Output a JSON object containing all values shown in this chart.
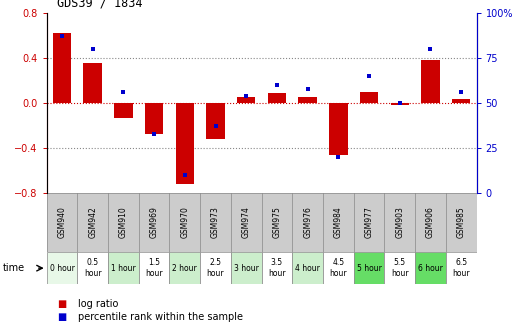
{
  "title": "GDS39 / 1834",
  "samples": [
    "GSM940",
    "GSM942",
    "GSM910",
    "GSM969",
    "GSM970",
    "GSM973",
    "GSM974",
    "GSM975",
    "GSM976",
    "GSM984",
    "GSM977",
    "GSM903",
    "GSM906",
    "GSM985"
  ],
  "time_labels": [
    "0 hour",
    "0.5\nhour",
    "1 hour",
    "1.5\nhour",
    "2 hour",
    "2.5\nhour",
    "3 hour",
    "3.5\nhour",
    "4 hour",
    "4.5\nhour",
    "5 hour",
    "5.5\nhour",
    "6 hour",
    "6.5\nhour"
  ],
  "log_ratio": [
    0.62,
    0.36,
    -0.13,
    -0.28,
    -0.72,
    -0.32,
    0.05,
    0.09,
    0.05,
    -0.46,
    0.1,
    -0.02,
    0.38,
    0.04
  ],
  "percentile": [
    87,
    80,
    56,
    33,
    10,
    37,
    54,
    60,
    58,
    20,
    65,
    50,
    80,
    56
  ],
  "time_colors": [
    "#e8f8e8",
    "#ffffff",
    "#cceecc",
    "#ffffff",
    "#cceecc",
    "#ffffff",
    "#cceecc",
    "#ffffff",
    "#cceecc",
    "#ffffff",
    "#66dd66",
    "#ffffff",
    "#66dd66",
    "#ffffff"
  ],
  "ylim_left": [
    -0.8,
    0.8
  ],
  "ylim_right": [
    0,
    100
  ],
  "yticks_left": [
    -0.8,
    -0.4,
    0.0,
    0.4,
    0.8
  ],
  "yticks_right": [
    0,
    25,
    50,
    75,
    100
  ],
  "bar_color": "#cc0000",
  "dot_color": "#0000cc",
  "background_color": "#ffffff",
  "sample_bg": "#cccccc",
  "legend_log_ratio": "log ratio",
  "legend_percentile": "percentile rank within the sample",
  "xlabel_time": "time"
}
